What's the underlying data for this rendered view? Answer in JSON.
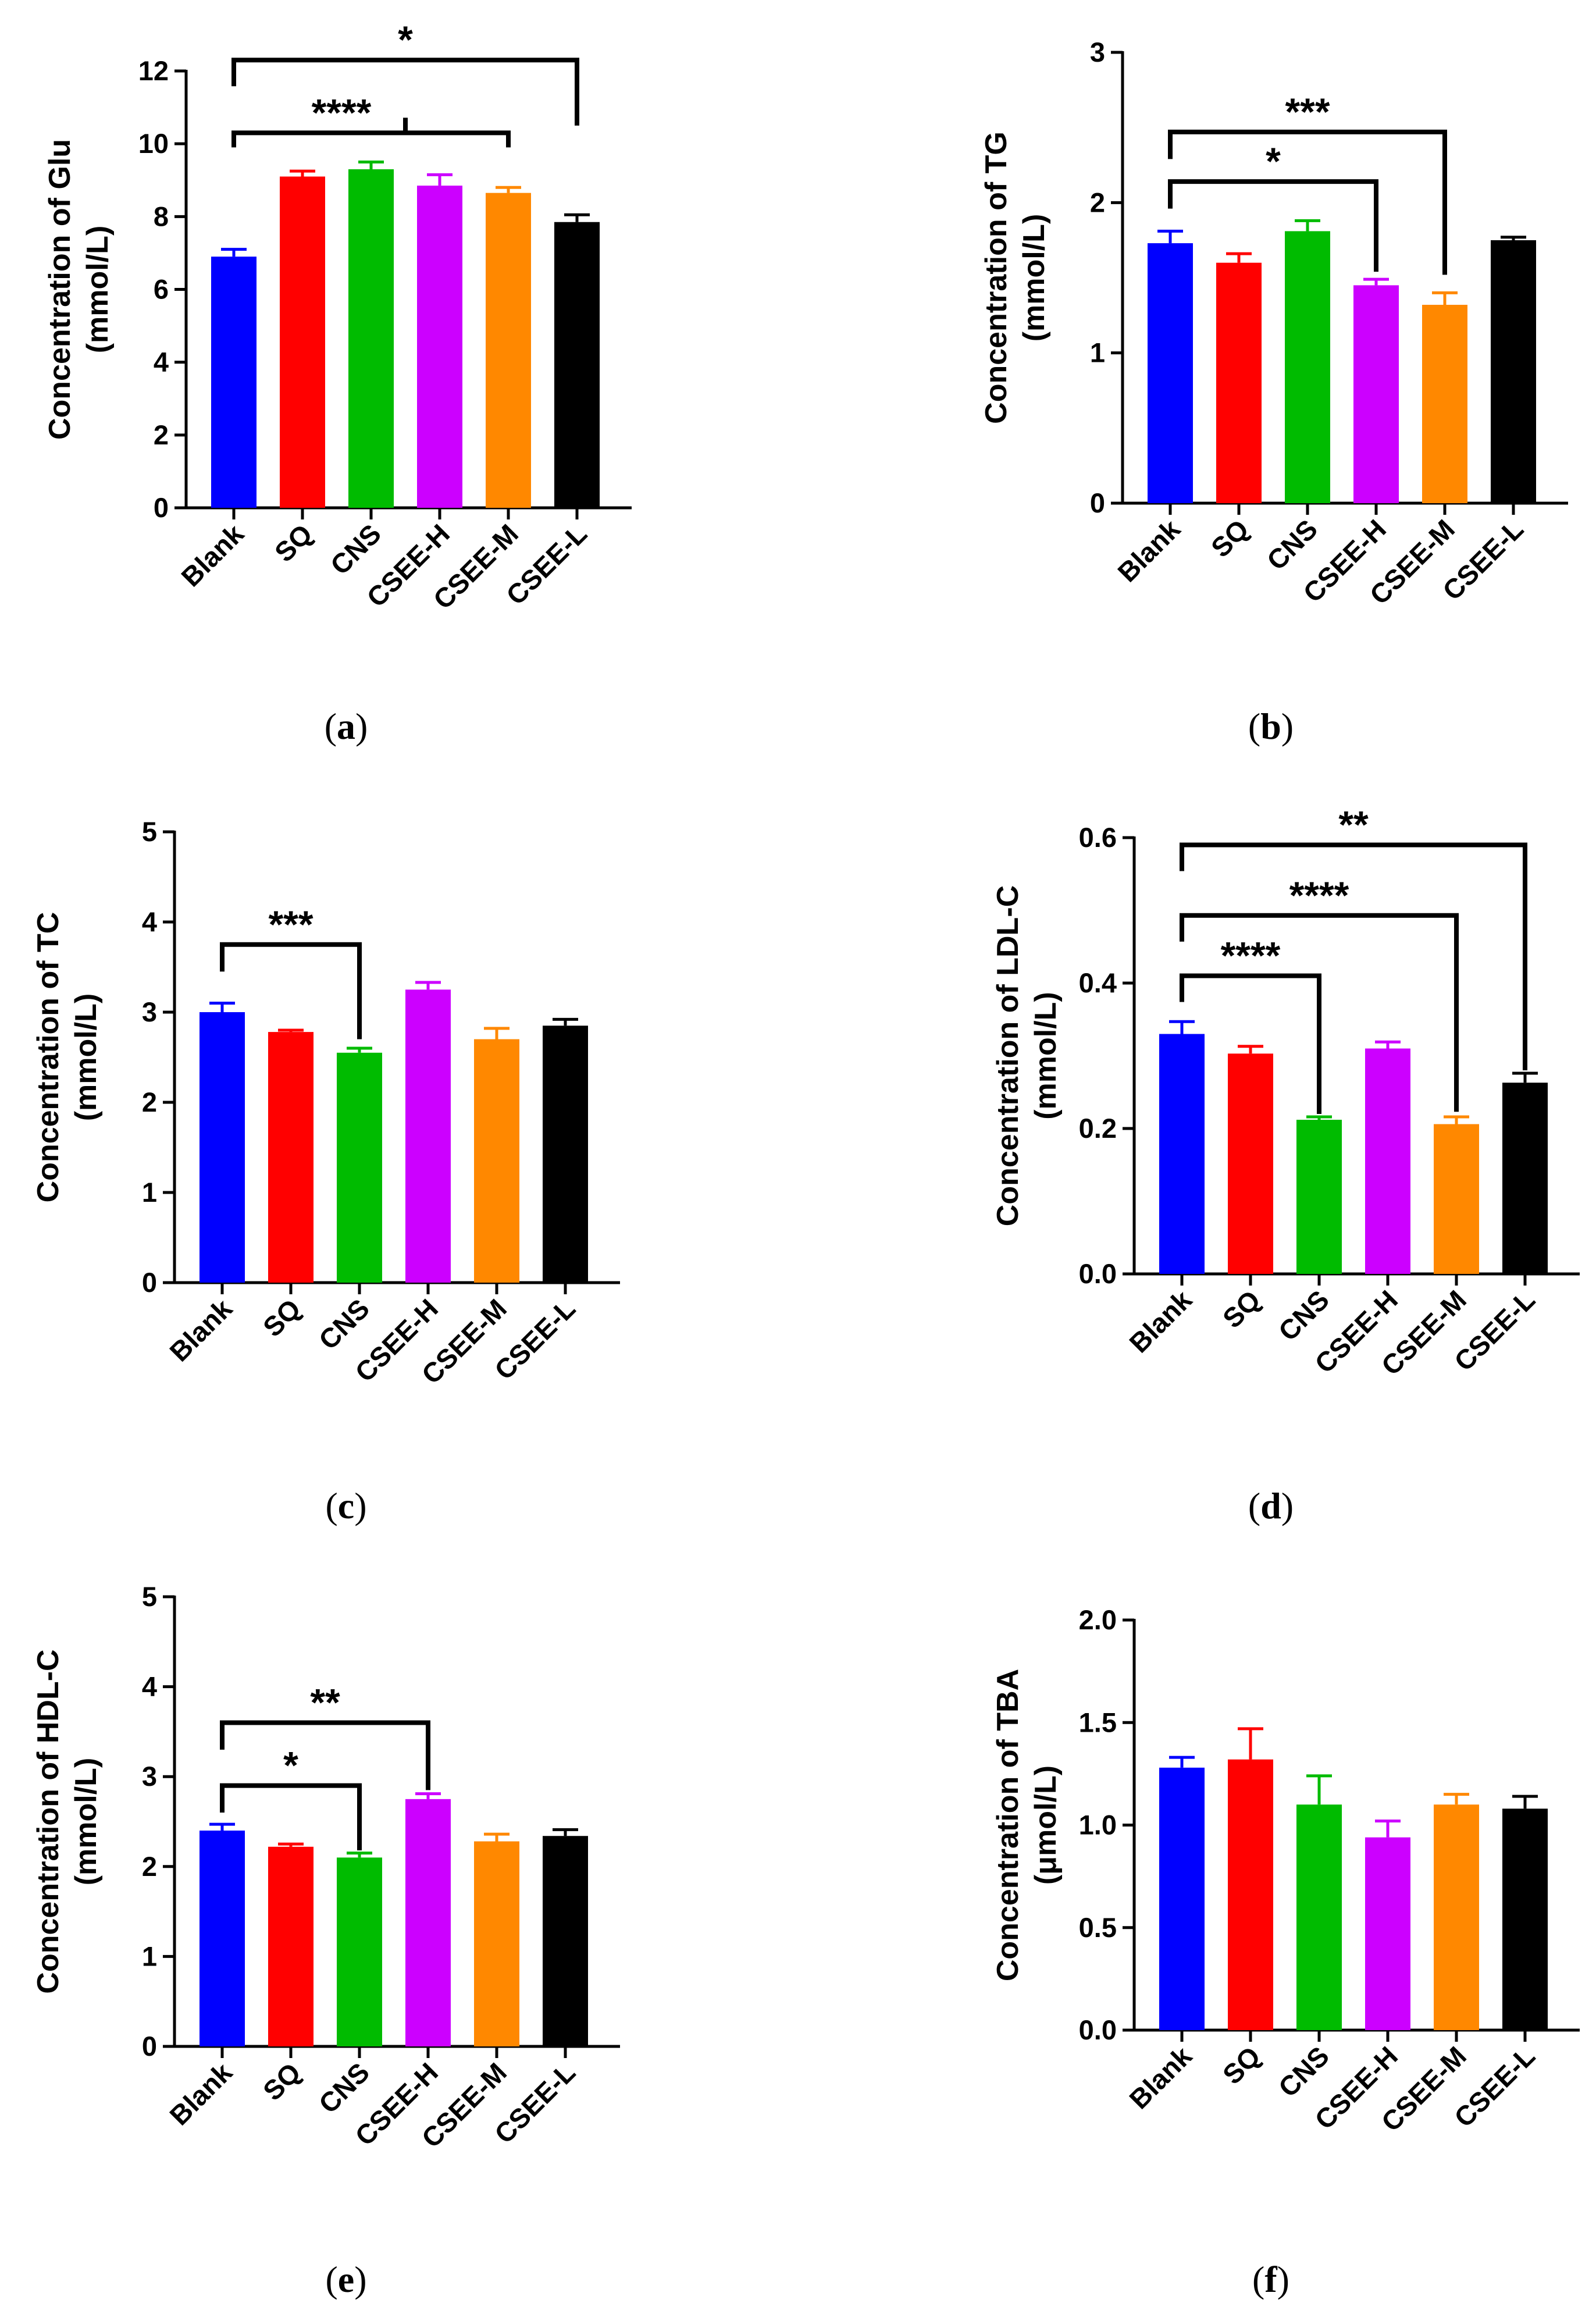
{
  "chart_data": [
    {
      "type": "bar",
      "panel": "a",
      "ylabel_line1": "Concentration of Glu",
      "ylabel_line2": "(mmol/L)",
      "categories": [
        "Blank",
        "SQ",
        "CNS",
        "CSEE-H",
        "CSEE-M",
        "CSEE-L"
      ],
      "values": [
        6.9,
        9.1,
        9.3,
        8.85,
        8.65,
        7.85
      ],
      "errors": [
        0.2,
        0.15,
        0.2,
        0.3,
        0.15,
        0.2
      ],
      "colors": [
        "#0000ff",
        "#ff0000",
        "#00bb00",
        "#cc00ff",
        "#ff8800",
        "#000000"
      ],
      "ylim": [
        0,
        12
      ],
      "yticks": [
        "0",
        "2",
        "4",
        "6",
        "8",
        "10",
        "12"
      ],
      "significance": [
        {
          "label": "*",
          "from": 0,
          "to": 5,
          "level": 12.3,
          "drop": 1.8
        },
        {
          "label": "****",
          "from": 0,
          "to": 4,
          "level": 10.3,
          "mid": 2.5,
          "drop": 0.4
        }
      ]
    },
    {
      "type": "bar",
      "panel": "b",
      "ylabel_line1": "Concentration of  TG",
      "ylabel_line2": "(mmol/L)",
      "categories": [
        "Blank",
        "SQ",
        "CNS",
        "CSEE-H",
        "CSEE-M",
        "CSEE-L"
      ],
      "values": [
        1.73,
        1.6,
        1.81,
        1.45,
        1.32,
        1.75
      ],
      "errors": [
        0.08,
        0.06,
        0.07,
        0.04,
        0.08,
        0.02
      ],
      "colors": [
        "#0000ff",
        "#ff0000",
        "#00bb00",
        "#cc00ff",
        "#ff8800",
        "#000000"
      ],
      "ylim": [
        0,
        3
      ],
      "yticks": [
        "0",
        "1",
        "2",
        "3"
      ],
      "significance": [
        {
          "label": "***",
          "from": 0,
          "to": 4,
          "level": 2.47,
          "drop": 0.95
        },
        {
          "label": "*",
          "from": 0,
          "to": 3,
          "level": 2.14,
          "drop": 0.6
        }
      ]
    },
    {
      "type": "bar",
      "panel": "c",
      "ylabel_line1": "Concentration of  TC",
      "ylabel_line2": "(mmol/L)",
      "categories": [
        "Blank",
        "SQ",
        "CNS",
        "CSEE-H",
        "CSEE-M",
        "CSEE-L"
      ],
      "values": [
        3.0,
        2.78,
        2.55,
        3.25,
        2.7,
        2.85
      ],
      "errors": [
        0.1,
        0.02,
        0.05,
        0.08,
        0.12,
        0.07
      ],
      "colors": [
        "#0000ff",
        "#ff0000",
        "#00bb00",
        "#cc00ff",
        "#ff8800",
        "#000000"
      ],
      "ylim": [
        0,
        5
      ],
      "yticks": [
        "0",
        "1",
        "2",
        "3",
        "4",
        "5"
      ],
      "significance": [
        {
          "label": "***",
          "from": 0,
          "to": 2,
          "level": 3.75,
          "drop": 1.05
        }
      ]
    },
    {
      "type": "bar",
      "panel": "d",
      "ylabel_line1": "Concentration of  LDL-C",
      "ylabel_line2": "(mmol/L)",
      "categories": [
        "Blank",
        "SQ",
        "CNS",
        "CSEE-H",
        "CSEE-M",
        "CSEE-L"
      ],
      "values": [
        0.33,
        0.303,
        0.212,
        0.31,
        0.206,
        0.263
      ],
      "errors": [
        0.017,
        0.01,
        0.004,
        0.009,
        0.01,
        0.013
      ],
      "colors": [
        "#0000ff",
        "#ff0000",
        "#00bb00",
        "#cc00ff",
        "#ff8800",
        "#000000"
      ],
      "ylim": [
        0,
        0.6
      ],
      "yticks": [
        "0.0",
        "0.2",
        "0.4",
        "0.6"
      ],
      "significance": [
        {
          "label": "**",
          "from": 0,
          "to": 5,
          "level": 0.59,
          "drop": 0.31
        },
        {
          "label": "****",
          "from": 0,
          "to": 4,
          "level": 0.493,
          "drop": 0.27
        },
        {
          "label": "****",
          "from": 0,
          "to": 2,
          "level": 0.41,
          "drop": 0.19
        }
      ]
    },
    {
      "type": "bar",
      "panel": "e",
      "ylabel_line1": "Concentration of  HDL-C",
      "ylabel_line2": "(mmol/L)",
      "categories": [
        "Blank",
        "SQ",
        "CNS",
        "CSEE-H",
        "CSEE-M",
        "CSEE-L"
      ],
      "values": [
        2.4,
        2.22,
        2.1,
        2.75,
        2.28,
        2.34
      ],
      "errors": [
        0.07,
        0.03,
        0.05,
        0.06,
        0.08,
        0.07
      ],
      "colors": [
        "#0000ff",
        "#ff0000",
        "#00bb00",
        "#cc00ff",
        "#ff8800",
        "#000000"
      ],
      "ylim": [
        0,
        5
      ],
      "yticks": [
        "0",
        "1",
        "2",
        "3",
        "4",
        "5"
      ],
      "significance": [
        {
          "label": "**",
          "from": 0,
          "to": 3,
          "level": 3.6,
          "drop": 0.75
        },
        {
          "label": "*",
          "from": 0,
          "to": 2,
          "level": 2.9,
          "drop": 0.72
        }
      ]
    },
    {
      "type": "bar",
      "panel": "f",
      "ylabel_line1": "Concentration of  TBA",
      "ylabel_line2": "(μmol/L)",
      "categories": [
        "Blank",
        "SQ",
        "CNS",
        "CSEE-H",
        "CSEE-M",
        "CSEE-L"
      ],
      "values": [
        1.28,
        1.32,
        1.1,
        0.94,
        1.1,
        1.08
      ],
      "errors": [
        0.05,
        0.15,
        0.14,
        0.08,
        0.05,
        0.06
      ],
      "colors": [
        "#0000ff",
        "#ff0000",
        "#00bb00",
        "#cc00ff",
        "#ff8800",
        "#000000"
      ],
      "ylim": [
        0,
        2.0
      ],
      "yticks": [
        "0.0",
        "0.5",
        "1.0",
        "1.5",
        "2.0"
      ],
      "significance": []
    }
  ],
  "captions": [
    "a",
    "b",
    "c",
    "d",
    "e",
    "f"
  ]
}
